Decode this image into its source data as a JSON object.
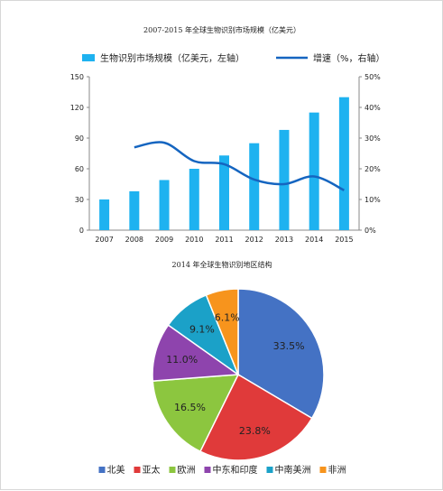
{
  "chart_data": [
    {
      "type": "bar",
      "title": "2007-2015 年全球生物识别市场规模（亿美元）",
      "categories": [
        "2007",
        "2008",
        "2009",
        "2010",
        "2011",
        "2012",
        "2013",
        "2014",
        "2015"
      ],
      "series": [
        {
          "name": "生物识别市场规模（亿美元，左轴）",
          "type": "bar",
          "axis": "left",
          "color": "#1eb2f0",
          "values": [
            30,
            38,
            49,
            60,
            73,
            85,
            98,
            115,
            130
          ]
        },
        {
          "name": "增速（%，右轴）",
          "type": "line",
          "axis": "right",
          "color": "#1565c0",
          "values": [
            null,
            27,
            28.5,
            22.5,
            21.5,
            16.5,
            15,
            17.5,
            13
          ]
        }
      ],
      "y_left": {
        "lim": [
          0,
          150
        ],
        "ticks": [
          "0",
          "30",
          "60",
          "90",
          "120",
          "150"
        ]
      },
      "y_right": {
        "lim": [
          0,
          50
        ],
        "ticks": [
          "0%",
          "10%",
          "20%",
          "30%",
          "40%",
          "50%"
        ]
      },
      "legend_position": "top"
    },
    {
      "type": "pie",
      "title": "2014 年全球生物识别地区结构",
      "labels": [
        "北美",
        "亚太",
        "欧洲",
        "中东和印度",
        "中南美洲",
        "非洲"
      ],
      "values": [
        33.5,
        23.8,
        16.5,
        11.0,
        9.1,
        6.1
      ],
      "value_labels": [
        "33.5%",
        "23.8%",
        "16.5%",
        "11.0%",
        "9.1%",
        "6.1%"
      ],
      "colors": [
        "#4472c4",
        "#e03a3a",
        "#8cc63f",
        "#8e44ad",
        "#1ba1c8",
        "#f7941d"
      ],
      "legend_position": "bottom"
    }
  ]
}
